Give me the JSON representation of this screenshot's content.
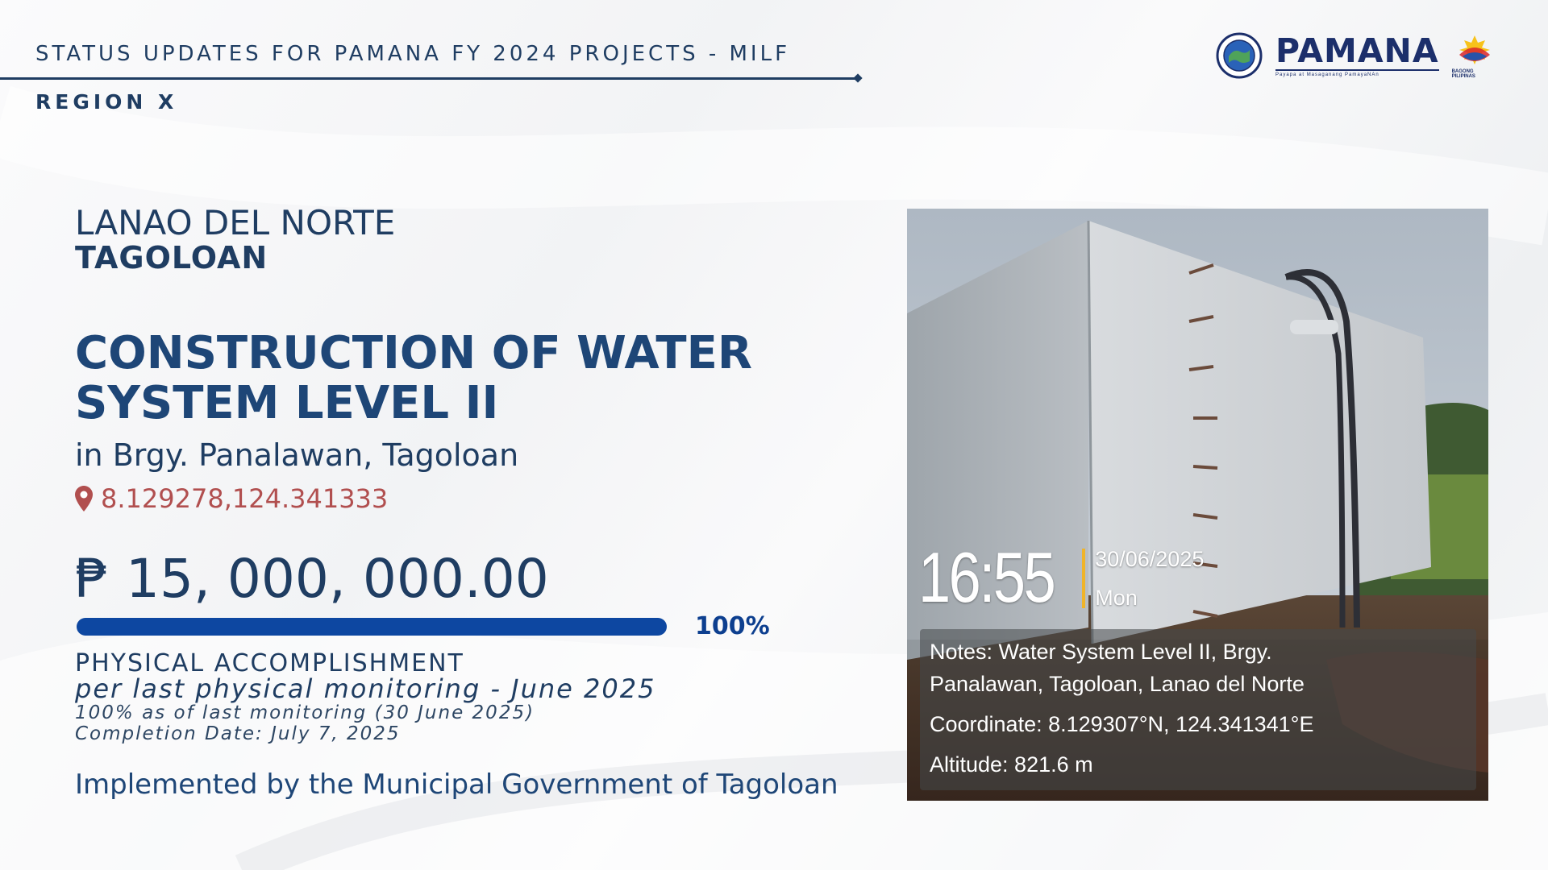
{
  "header": {
    "title": "STATUS UPDATES FOR PAMANA FY 2024 PROJECTS - MILF",
    "region": "REGION X"
  },
  "logos": {
    "pamana": "PAMANA",
    "pamana_tagline": "Payapa at Masaganang PamayaNAn",
    "bagong_pilipinas": "BAGONG PILIPINAS"
  },
  "project": {
    "province": "LANAO DEL NORTE",
    "municipality": "TAGOLOAN",
    "title": "CONSTRUCTION OF WATER SYSTEM LEVEL II",
    "location": "in Brgy. Panalawan, Tagoloan",
    "coordinates": "8.129278,124.341333",
    "budget": "₱ 15, 000, 000.00",
    "progress_percent": 100,
    "progress_label": "100%",
    "accomplishment_title": "PHYSICAL ACCOMPLISHMENT",
    "accomplishment_sub": "per last physical monitoring - June 2025",
    "accomplishment_note": "100% as of last monitoring (30 June 2025)",
    "completion_date": "Completion Date: July 7, 2025",
    "implemented_by": "Implemented by the Municipal Government of Tagoloan"
  },
  "photo": {
    "time": "16:55",
    "date": "30/06/2025",
    "day": "Mon",
    "notes_line1": "Notes: Water System Level II, Brgy.",
    "notes_line2": "Panalawan, Tagoloan, Lanao del Norte",
    "coordinate": "Coordinate: 8.129307°N, 124.341341°E",
    "altitude": "Altitude: 821.6 m"
  },
  "colors": {
    "navy": "#1f3d62",
    "title_blue": "#1e4677",
    "progress": "#0d47a1",
    "coords_red": "#b14f4f",
    "stamp_accent": "#f0b429"
  },
  "icons": {
    "coordinates": "map-pin-icon"
  }
}
